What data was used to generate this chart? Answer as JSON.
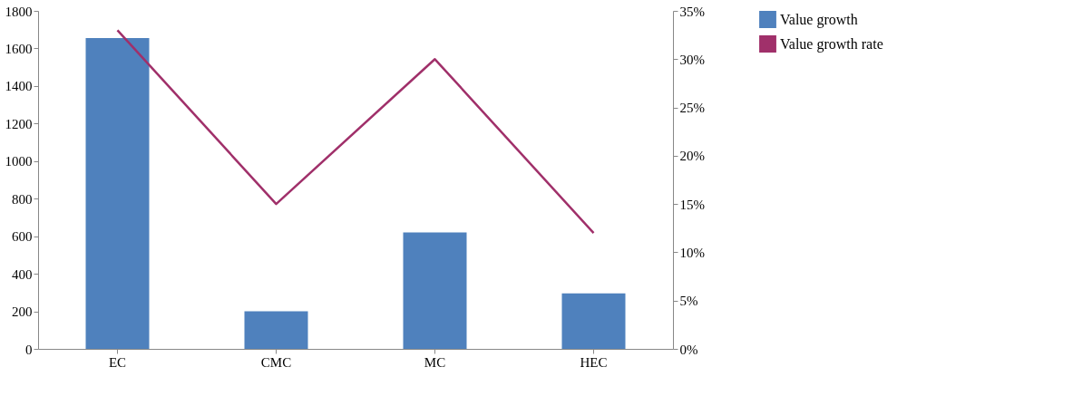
{
  "chart_data": {
    "type": "bar",
    "categories": [
      "EC",
      "CMC",
      "MC",
      "HEC"
    ],
    "series": [
      {
        "name": "Value growth",
        "color": "#4f81bd",
        "values": [
          1655,
          200,
          620,
          295
        ]
      },
      {
        "name": "Value growth rate",
        "type": "line",
        "axis": "y2",
        "color": "#a0306a",
        "values": [
          33,
          15,
          30,
          12
        ]
      }
    ],
    "ylim": [
      0,
      1800
    ],
    "yticks": [
      0,
      200,
      400,
      600,
      800,
      1000,
      1200,
      1400,
      1600,
      1800
    ],
    "y2lim": [
      0,
      35
    ],
    "y2ticks": [
      {
        "value": 0,
        "label": "0%"
      },
      {
        "value": 5,
        "label": "5%"
      },
      {
        "value": 10,
        "label": "10%"
      },
      {
        "value": 15,
        "label": "15%"
      },
      {
        "value": 20,
        "label": "20%"
      },
      {
        "value": 25,
        "label": "25%"
      },
      {
        "value": 30,
        "label": "30%"
      },
      {
        "value": 35,
        "label": "35%"
      }
    ],
    "grid": false,
    "legend": "right",
    "marker": "none",
    "line_style": "solid"
  }
}
